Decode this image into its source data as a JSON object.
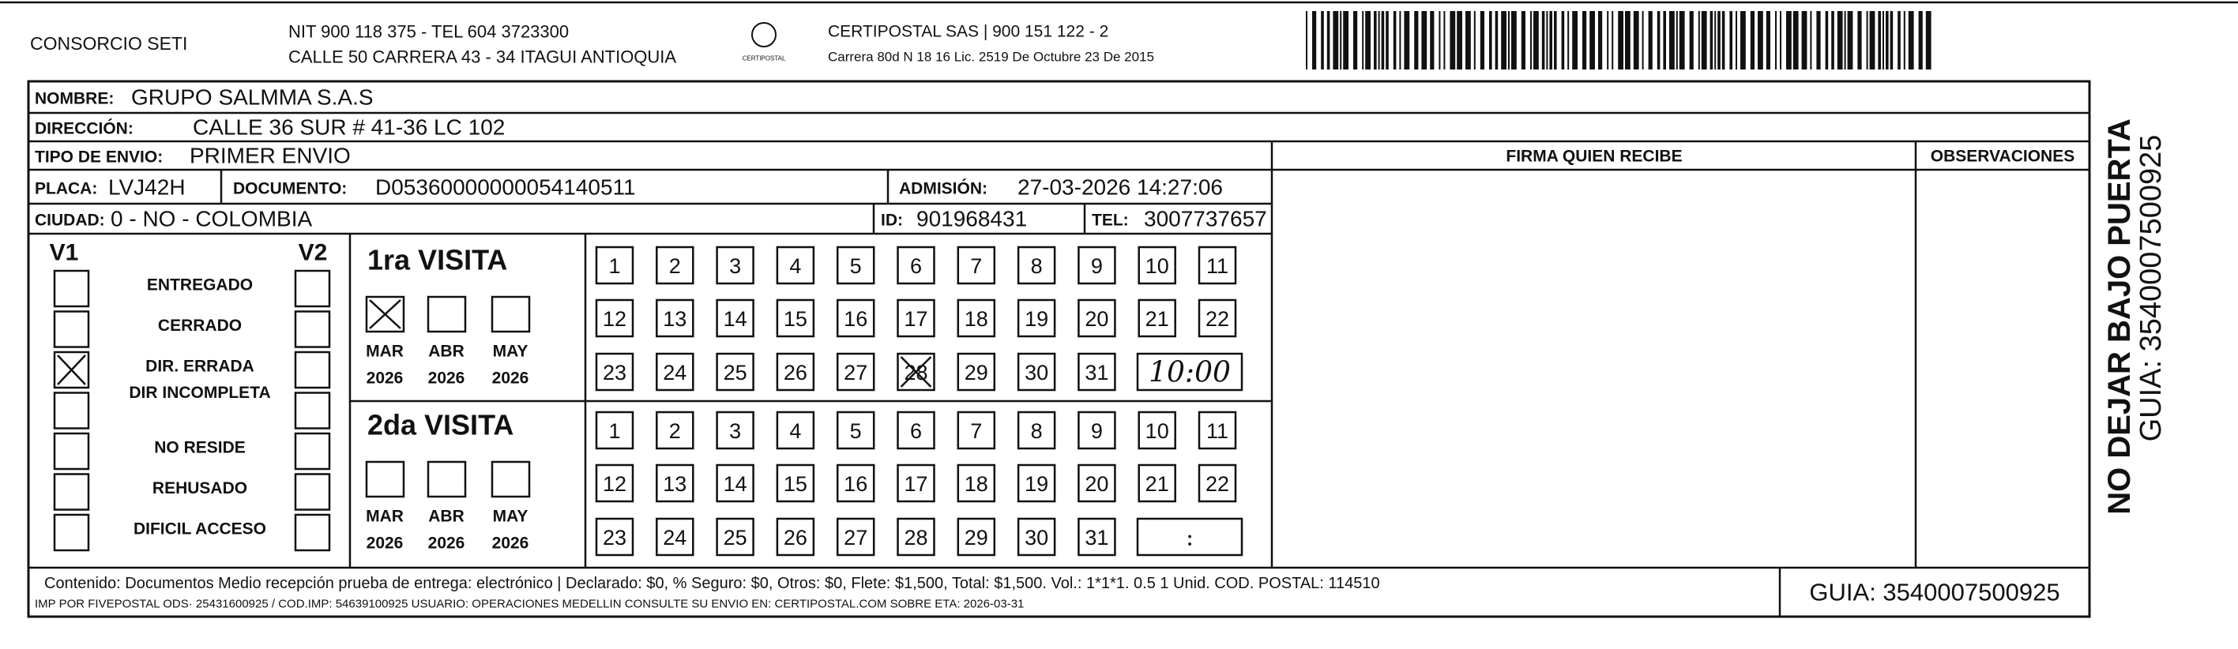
{
  "header": {
    "company": "CONSORCIO SETI",
    "nit": "NIT 900 118 375 - TEL 604 3723300",
    "address": "CALLE 50 CARRERA 43 - 34 ITAGUI ANTIOQUIA",
    "logo": "CERTIPOSTAL",
    "carrier": "CERTIPOSTAL SAS | 900 151 122 - 2",
    "carrier_address": "Carrera 80d N 18 16 Lic. 2519 De Octubre 23 De 2015"
  },
  "fields": {
    "nombre": {
      "label": "NOMBRE:",
      "value": "GRUPO SALMMA S.A.S"
    },
    "direccion": {
      "label": "DIRECCIÓN:",
      "value": "CALLE 36 SUR # 41-36 LC 102"
    },
    "tipo": {
      "label": "TIPO DE ENVIO:",
      "value": "PRIMER ENVIO"
    },
    "placa": {
      "label": "PLACA:",
      "value": "LVJ42H"
    },
    "documento": {
      "label": "DOCUMENTO:",
      "value": "D05360000000054140511"
    },
    "admision": {
      "label": "ADMISIÓN:",
      "value": "27-03-2026 14:27:06"
    },
    "ciudad": {
      "label": "CIUDAD:",
      "value": "0 - NO - COLOMBIA"
    },
    "id": {
      "label": "ID:",
      "value": "901968431"
    },
    "tel": {
      "label": "TEL:",
      "value": "3007737657"
    }
  },
  "signature": {
    "firma": "FIRMA QUIEN RECIBE",
    "observaciones": "OBSERVACIONES"
  },
  "status": {
    "v1": "V1",
    "v2": "V2",
    "options": [
      {
        "label": "ENTREGADO",
        "v1": false,
        "v2": false
      },
      {
        "label": "CERRADO",
        "v1": false,
        "v2": false
      },
      {
        "label": "DIR. ERRADA",
        "v1": true,
        "v2": false
      },
      {
        "label": "DIR INCOMPLETA",
        "v1": false,
        "v2": false
      },
      {
        "label": "NO RESIDE",
        "v1": false,
        "v2": false
      },
      {
        "label": "REHUSADO",
        "v1": false,
        "v2": false
      },
      {
        "label": "DIFICIL ACCESO",
        "v1": false,
        "v2": false
      }
    ]
  },
  "visits": [
    {
      "title": "1ra VISITA",
      "months": [
        {
          "month": "MAR",
          "year": "2026",
          "checked": true
        },
        {
          "month": "ABR",
          "year": "2026",
          "checked": false
        },
        {
          "month": "MAY",
          "year": "2026",
          "checked": false
        }
      ],
      "days": [
        1,
        2,
        3,
        4,
        5,
        6,
        7,
        8,
        9,
        10,
        11,
        12,
        13,
        14,
        15,
        16,
        17,
        18,
        19,
        20,
        21,
        22,
        23,
        24,
        25,
        26,
        27,
        28,
        29,
        30,
        31
      ],
      "crossed_days": [
        28
      ],
      "time": "10:00"
    },
    {
      "title": "2da VISITA",
      "months": [
        {
          "month": "MAR",
          "year": "2026",
          "checked": false
        },
        {
          "month": "ABR",
          "year": "2026",
          "checked": false
        },
        {
          "month": "MAY",
          "year": "2026",
          "checked": false
        }
      ],
      "days": [
        1,
        2,
        3,
        4,
        5,
        6,
        7,
        8,
        9,
        10,
        11,
        12,
        13,
        14,
        15,
        16,
        17,
        18,
        19,
        20,
        21,
        22,
        23,
        24,
        25,
        26,
        27,
        28,
        29,
        30,
        31
      ],
      "crossed_days": [],
      "time": ":"
    }
  ],
  "footer": {
    "contenido": "Contenido: Documentos Medio recepción prueba de entrega: electrónico | Declarado: $0, % Seguro: $0, Otros: $0, Flete: $1,500, Total: $1,500. Vol.: 1*1*1. 0.5  1 Unid. COD. POSTAL: 114510",
    "imp": "IMP POR FIVEPOSTAL ODS· 25431600925 / COD.IMP: 54639100925 USUARIO: OPERACIONES MEDELLIN CONSULTE SU ENVIO EN: CERTIPOSTAL.COM SOBRE ETA: 2026-03-31",
    "guia": "GUIA: 3540007500925"
  },
  "side": {
    "warning": "NO DEJAR BAJO PUERTA",
    "guia": "GUIA: 3540007500925"
  }
}
